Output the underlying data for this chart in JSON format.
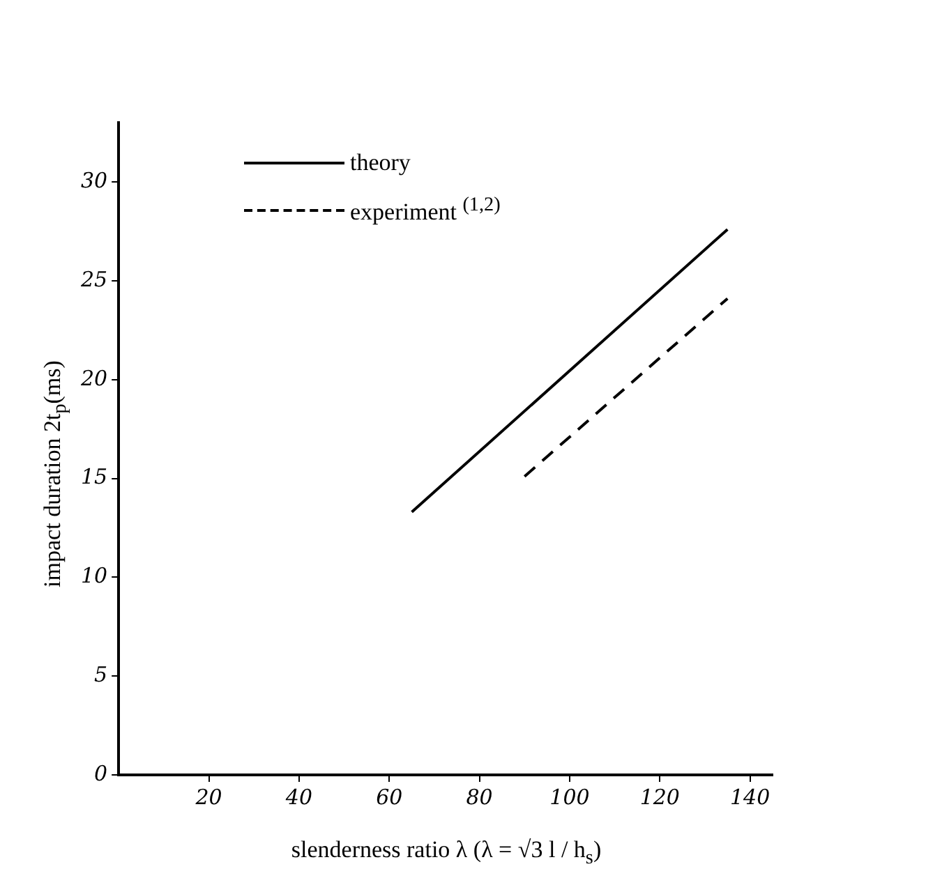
{
  "chart_data": {
    "type": "line",
    "xlabel": "slenderness ratio λ (λ = √3 l / h$_{s}$)",
    "ylabel": "impact duration 2t$_{p}$(ms)",
    "xlim": [
      0,
      145
    ],
    "ylim": [
      0,
      33
    ],
    "xticks": [
      20,
      40,
      60,
      80,
      100,
      120,
      140
    ],
    "yticks": [
      0,
      5,
      10,
      15,
      20,
      25,
      30
    ],
    "grid": false,
    "legend": "top left",
    "marker": "none",
    "series": [
      {
        "name": "theory",
        "color": "#000000",
        "line_style": "solid",
        "x": [
          65,
          135
        ],
        "values": [
          13.3,
          27.6
        ]
      },
      {
        "name": "experiment $^{(1,2)}$",
        "color": "#000000",
        "line_style": "dashed",
        "x": [
          90,
          135
        ],
        "values": [
          15.1,
          24.1
        ]
      }
    ]
  }
}
